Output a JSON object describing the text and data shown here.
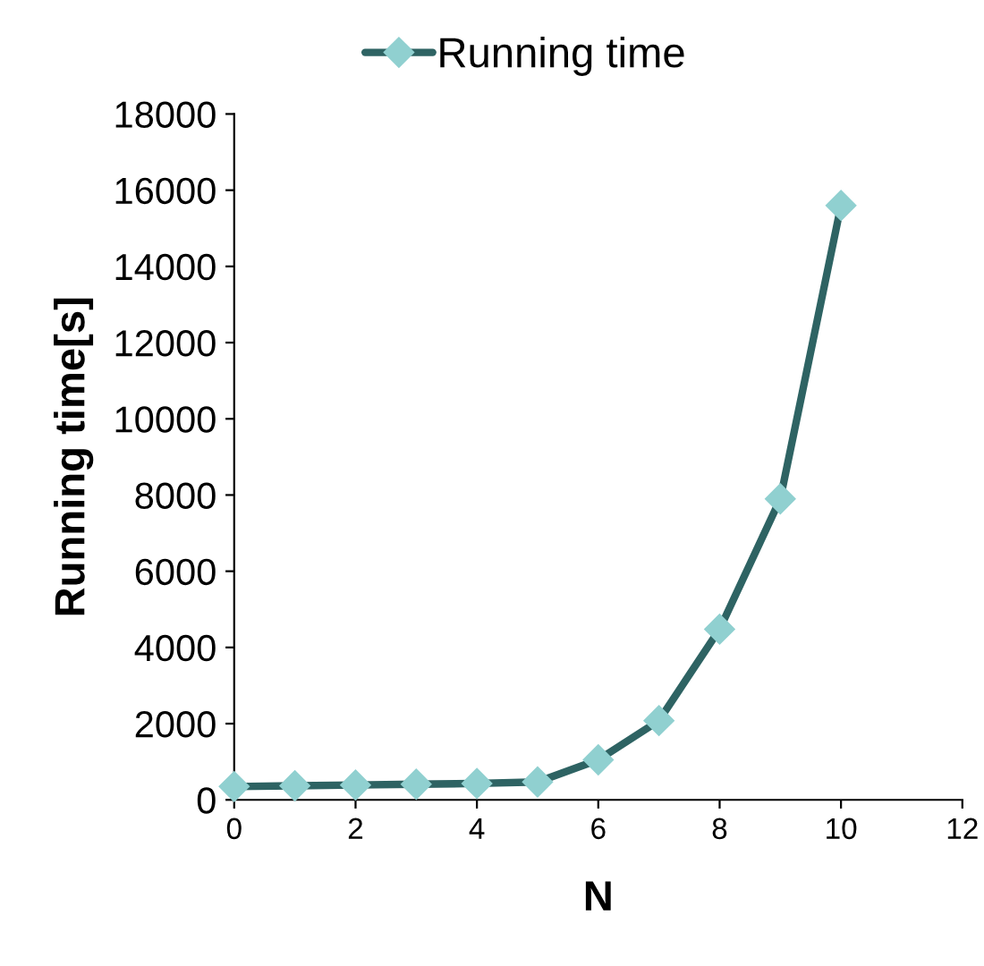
{
  "chart_data": {
    "type": "line",
    "xlabel": "N",
    "ylabel": "Running time[s]",
    "x": [
      0,
      1,
      2,
      3,
      4,
      5,
      6,
      7,
      8,
      9,
      10
    ],
    "series": [
      {
        "name": "Running time",
        "color": "#2e6363",
        "values": [
          350,
          370,
          390,
          410,
          430,
          470,
          1050,
          2080,
          4480,
          7900,
          15600
        ]
      }
    ],
    "xlim": [
      0,
      12
    ],
    "xticks": [
      0,
      2,
      4,
      6,
      8,
      10,
      12
    ],
    "ylim": [
      0,
      18000
    ],
    "yticks": [
      0,
      2000,
      4000,
      6000,
      8000,
      10000,
      12000,
      14000,
      16000,
      18000
    ],
    "grid": false,
    "legend": "top",
    "marker": "diamond",
    "line_style": "solid"
  }
}
